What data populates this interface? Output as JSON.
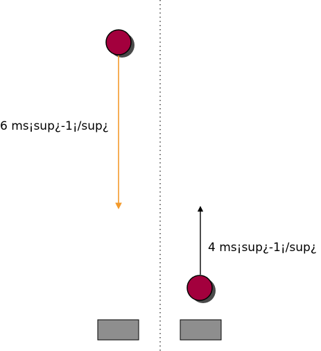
{
  "scene": {
    "left_panel": {
      "velocity_label": "6 ms¡sup¿-1¡/sup¿",
      "arrow_direction": "down",
      "arrow_color": "#f39a2c"
    },
    "right_panel": {
      "velocity_label": "4 ms¡sup¿-1¡/sup¿",
      "arrow_direction": "up",
      "arrow_color": "#000000"
    },
    "ball_color": "#a3003d",
    "ball_shadow_color": "#4a4a4a",
    "block_color": "#8e8e8e",
    "divider": "dotted"
  }
}
